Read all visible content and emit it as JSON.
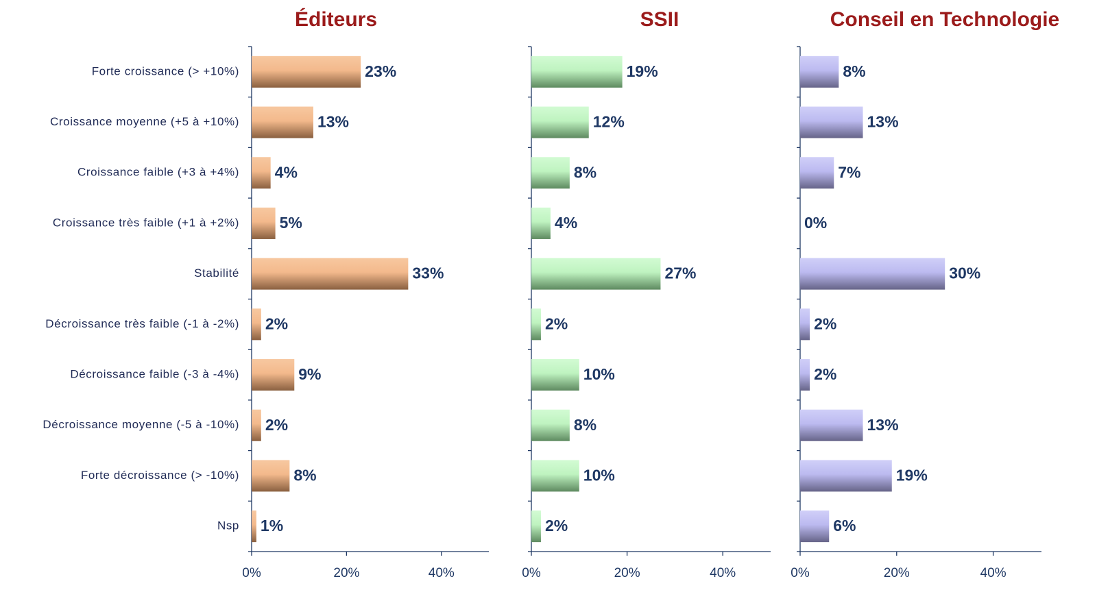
{
  "chart_data": [
    {
      "type": "bar",
      "orientation": "horizontal",
      "title": "Éditeurs",
      "color": "#f3b98c",
      "categories": [
        "Forte croissance (> +10%)",
        "Croissance moyenne (+5 à +10%)",
        "Croissance faible (+3 à +4%)",
        "Croissance très faible (+1 à +2%)",
        "Stabilité",
        "Décroissance très faible (-1 à -2%)",
        "Décroissance faible (-3 à -4%)",
        "Décroissance moyenne (-5 à -10%)",
        "Forte décroissance (> -10%)",
        "Nsp"
      ],
      "values": [
        23,
        13,
        4,
        5,
        33,
        2,
        9,
        2,
        8,
        1
      ],
      "value_labels": [
        "23%",
        "13%",
        "4%",
        "5%",
        "33%",
        "2%",
        "9%",
        "2%",
        "8%",
        "1%"
      ],
      "xlim": [
        0,
        50
      ],
      "xticks": [
        {
          "value": 0,
          "label": "0%"
        },
        {
          "value": 20,
          "label": "20%"
        },
        {
          "value": 40,
          "label": "40%"
        }
      ]
    },
    {
      "type": "bar",
      "orientation": "horizontal",
      "title": "SSII",
      "color": "#bff3c0",
      "values": [
        19,
        12,
        8,
        4,
        27,
        2,
        10,
        8,
        10,
        2
      ],
      "value_labels": [
        "19%",
        "12%",
        "8%",
        "4%",
        "27%",
        "2%",
        "10%",
        "8%",
        "10%",
        "2%"
      ],
      "xlim": [
        0,
        50
      ],
      "xticks": [
        {
          "value": 0,
          "label": "0%"
        },
        {
          "value": 20,
          "label": "20%"
        },
        {
          "value": 40,
          "label": "40%"
        }
      ]
    },
    {
      "type": "bar",
      "orientation": "horizontal",
      "title": "Conseil en Technologie",
      "color": "#bcbaf0",
      "values": [
        8,
        13,
        7,
        0,
        30,
        2,
        2,
        13,
        19,
        6
      ],
      "value_labels": [
        "8%",
        "13%",
        "7%",
        "0%",
        "30%",
        "2%",
        "2%",
        "13%",
        "19%",
        "6%"
      ],
      "xlim": [
        0,
        50
      ],
      "xticks": [
        {
          "value": 0,
          "label": "0%"
        },
        {
          "value": 20,
          "label": "20%"
        },
        {
          "value": 40,
          "label": "40%"
        }
      ]
    }
  ]
}
